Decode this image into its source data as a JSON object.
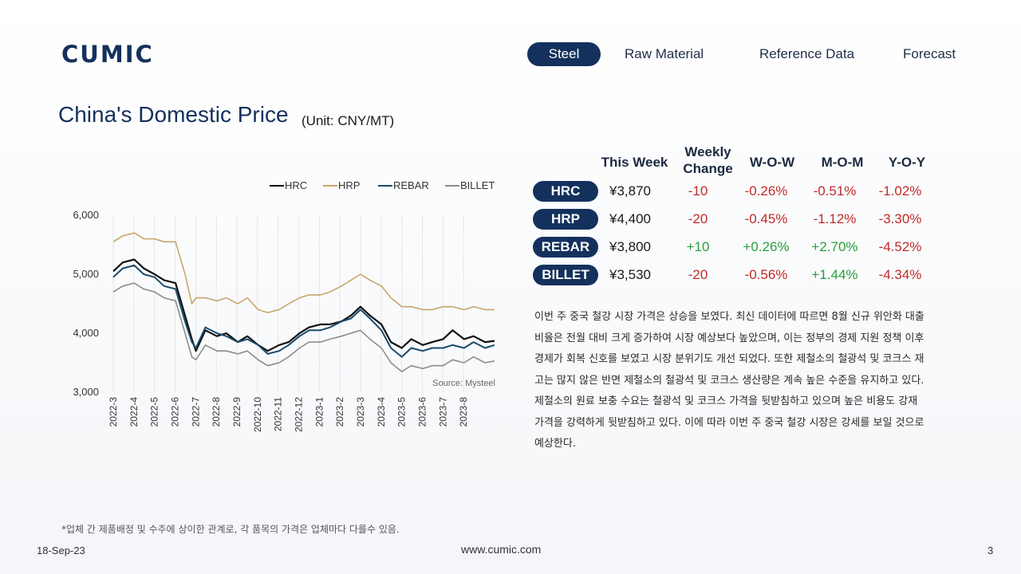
{
  "logo": "CUMIC",
  "nav": [
    "Steel",
    "Raw Material",
    "Reference Data",
    "Forecast"
  ],
  "title": "China's Domestic Price",
  "unit": "(Unit: CNY/MT)",
  "table": {
    "headers": [
      "This Week",
      "Weekly Change",
      "W-O-W",
      "M-O-M",
      "Y-O-Y"
    ],
    "rows": [
      {
        "name": "HRC",
        "price": "¥3,870",
        "change": "-10",
        "wow": "-0.26%",
        "mom": "-0.51%",
        "yoy": "-1.02%"
      },
      {
        "name": "HRP",
        "price": "¥4,400",
        "change": "-20",
        "wow": "-0.45%",
        "mom": "-1.12%",
        "yoy": "-3.30%"
      },
      {
        "name": "REBAR",
        "price": "¥3,800",
        "change": "+10",
        "wow": "+0.26%",
        "mom": "+2.70%",
        "yoy": "-4.52%"
      },
      {
        "name": "BILLET",
        "price": "¥3,530",
        "change": "-20",
        "wow": "-0.56%",
        "mom": "+1.44%",
        "yoy": "-4.34%"
      }
    ]
  },
  "commentary": "이번 주 중국 철강 시장 가격은 상승을 보였다. 최신 데이터에 따르면 8월 신규 위안화 대출 비율은 전월 대비 크게 증가하여 시장 예상보다 높았으며, 이는 정부의 경제 지원 정책 이후 경제가 회복 신호를 보였고 시장 분위기도 개선 되었다. 또한 제철소의 철광석 및 코크스 재고는 많지 않은 반면 제철소의 철광석 및 코크스 생산량은 계속 높은 수준을 유지하고 있다. 제철소의 원료 보충 수요는 철광석 및 코크스 가격을 뒷받침하고 있으며 높은 비용도 강재 가격을 강력하게 뒷받침하고 있다. 이에 따라 이번 주 중국 철강 시장은 강세를 보일 것으로 예상한다.",
  "footnote": "*업체 간 제품배정 및 수주에 상이한 관계로, 각 품목의 가격은 업체마다 다를수 있음.",
  "footer": {
    "date": "18-Sep-23",
    "url": "www.cumic.com",
    "page": "3"
  },
  "colors": {
    "brand": "#13315c",
    "negative": "#c02a2a",
    "positive": "#2a9d3a"
  },
  "chart_data": {
    "type": "line",
    "legend_position": "top-right",
    "ylim": [
      3000,
      6000
    ],
    "yticks": [
      "3,000",
      "4,000",
      "5,000",
      "6,000"
    ],
    "x_labels": [
      "2022-3",
      "2022-4",
      "2022-5",
      "2022-6",
      "2022-7",
      "2022-8",
      "2022-9",
      "2022-10",
      "2022-11",
      "2022-12",
      "2023-1",
      "2023-2",
      "2023-3",
      "2023-4",
      "2023-5",
      "2023-6",
      "2023-7",
      "2023-8"
    ],
    "source": "Source: Mysteel",
    "grid": "vertical",
    "x": [
      "2022-03-01",
      "2022-03-15",
      "2022-04-01",
      "2022-04-15",
      "2022-05-01",
      "2022-05-15",
      "2022-06-01",
      "2022-06-15",
      "2022-06-25",
      "2022-07-01",
      "2022-07-15",
      "2022-08-01",
      "2022-08-15",
      "2022-09-01",
      "2022-09-15",
      "2022-10-01",
      "2022-10-15",
      "2022-11-01",
      "2022-11-15",
      "2022-12-01",
      "2022-12-15",
      "2023-01-01",
      "2023-01-15",
      "2023-02-01",
      "2023-02-15",
      "2023-03-01",
      "2023-03-15",
      "2023-04-01",
      "2023-04-15",
      "2023-05-01",
      "2023-05-15",
      "2023-06-01",
      "2023-06-15",
      "2023-07-01",
      "2023-07-15",
      "2023-08-01",
      "2023-08-15",
      "2023-09-01",
      "2023-09-15"
    ],
    "series": [
      {
        "name": "HRC",
        "color": "#111111",
        "width": 2.2,
        "values": [
          5050,
          5200,
          5250,
          5100,
          5000,
          4900,
          4850,
          4300,
          3900,
          3700,
          4050,
          3950,
          4000,
          3850,
          3950,
          3800,
          3700,
          3800,
          3850,
          4000,
          4100,
          4150,
          4150,
          4200,
          4300,
          4450,
          4300,
          4150,
          3850,
          3750,
          3900,
          3800,
          3850,
          3900,
          4050,
          3900,
          3950,
          3850,
          3870
        ]
      },
      {
        "name": "HRP",
        "color": "#c9a56b",
        "width": 1.6,
        "values": [
          5550,
          5650,
          5700,
          5600,
          5600,
          5550,
          5550,
          5000,
          4500,
          4600,
          4600,
          4550,
          4600,
          4500,
          4600,
          4400,
          4350,
          4400,
          4500,
          4600,
          4650,
          4650,
          4700,
          4800,
          4900,
          5000,
          4900,
          4800,
          4600,
          4450,
          4450,
          4400,
          4400,
          4450,
          4450,
          4400,
          4450,
          4400,
          4400
        ]
      },
      {
        "name": "REBAR",
        "color": "#1b4a6b",
        "width": 2.0,
        "values": [
          4950,
          5100,
          5150,
          5000,
          4950,
          4800,
          4750,
          4200,
          3850,
          3750,
          4100,
          4000,
          3950,
          3850,
          3900,
          3800,
          3650,
          3700,
          3800,
          3950,
          4050,
          4050,
          4100,
          4200,
          4250,
          4400,
          4250,
          4050,
          3750,
          3600,
          3750,
          3700,
          3750,
          3750,
          3800,
          3750,
          3850,
          3750,
          3800
        ]
      },
      {
        "name": "BILLET",
        "color": "#8c8c8c",
        "width": 1.6,
        "values": [
          4700,
          4800,
          4850,
          4750,
          4700,
          4600,
          4550,
          4000,
          3600,
          3550,
          3800,
          3700,
          3700,
          3650,
          3700,
          3550,
          3450,
          3500,
          3600,
          3750,
          3850,
          3850,
          3900,
          3950,
          4000,
          4050,
          3900,
          3750,
          3500,
          3350,
          3450,
          3400,
          3450,
          3450,
          3550,
          3500,
          3600,
          3500,
          3530
        ]
      }
    ]
  }
}
